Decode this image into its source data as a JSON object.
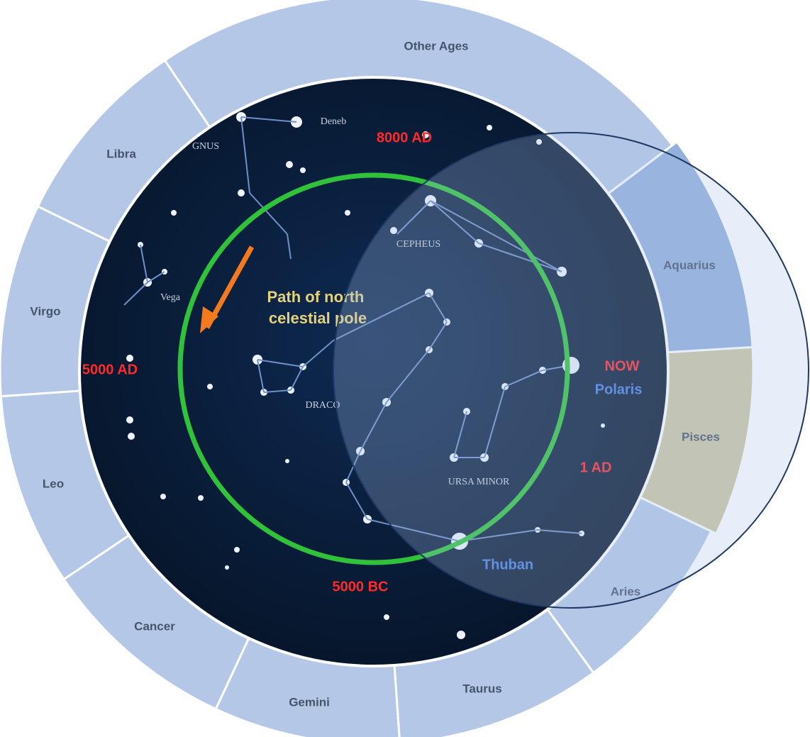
{
  "ring": {
    "sectors": [
      "Other Ages",
      "Libra",
      "Virgo",
      "Leo",
      "Cancer",
      "Gemini",
      "Taurus",
      "Aries",
      "Pisces",
      "Aquarius"
    ]
  },
  "star_map": {
    "title": "Path of north celestial pole",
    "markers": [
      "8000 AD",
      "5000 AD",
      "NOW",
      "1 AD",
      "5000 BC"
    ],
    "stars": [
      "Polaris",
      "Thuban",
      "Deneb",
      "Vega"
    ],
    "constellations": [
      "CEPHEUS",
      "DRACO",
      "URSA MINOR",
      "GNUS"
    ]
  }
}
